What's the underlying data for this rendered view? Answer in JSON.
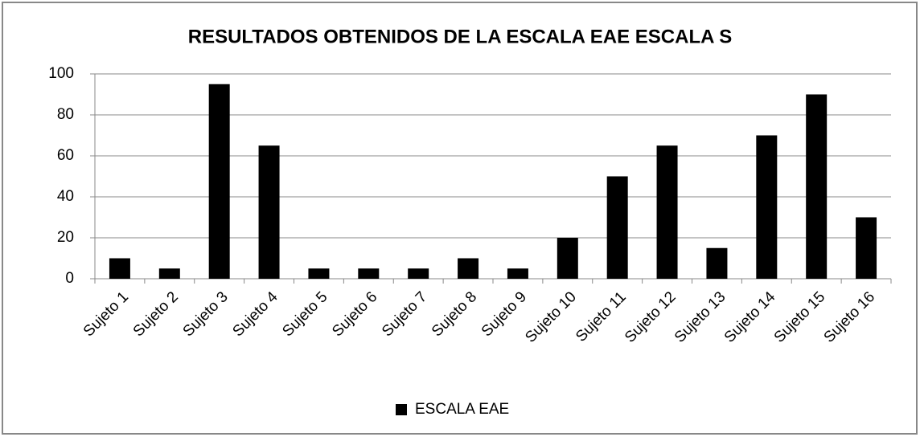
{
  "chart_data": {
    "type": "bar",
    "title": "RESULTADOS OBTENIDOS DE LA ESCALA EAE ESCALA S",
    "categories": [
      "Sujeto 1",
      "Sujeto 2",
      "Sujeto 3",
      "Sujeto 4",
      "Sujeto 5",
      "Sujeto 6",
      "Sujeto 7",
      "Sujeto 8",
      "Sujeto 9",
      "Sujeto 10",
      "Sujeto 11",
      "Sujeto 12",
      "Sujeto 13",
      "Sujeto 14",
      "Sujeto 15",
      "Sujeto 16"
    ],
    "series": [
      {
        "name": "ESCALA EAE",
        "color": "#000000",
        "values": [
          10,
          5,
          95,
          65,
          5,
          5,
          5,
          10,
          5,
          20,
          50,
          65,
          15,
          70,
          90,
          30
        ]
      }
    ],
    "ylim": [
      0,
      100
    ],
    "yticks": [
      0,
      20,
      40,
      60,
      80,
      100
    ],
    "grid": true,
    "legend": "bottom"
  }
}
